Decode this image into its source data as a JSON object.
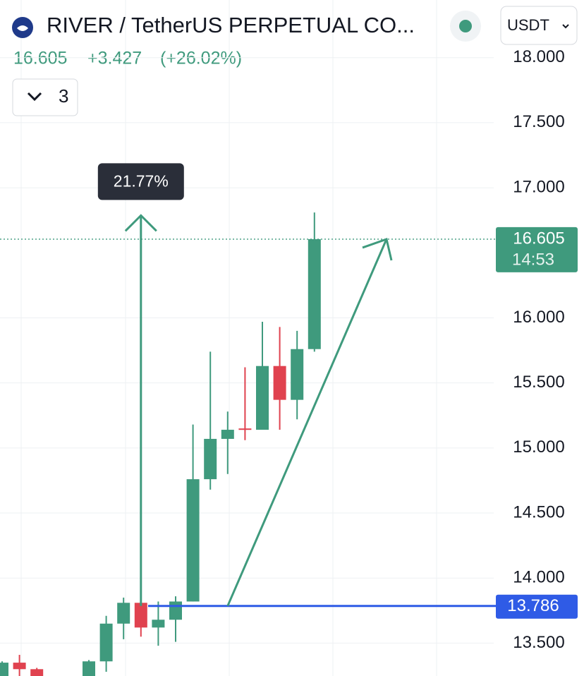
{
  "chart_data": {
    "type": "candlestick",
    "title": "RIVER / TetherUS PERPETUAL CO...",
    "last_price": 16.605,
    "change": "+3.427",
    "change_percent": "(+26.02%)",
    "interval_count": "3",
    "currency": "USDT",
    "countdown": "14:53",
    "up_color": "#3f9a7d",
    "down_color": "#e0424f",
    "categories": [
      null,
      null,
      null,
      null,
      null,
      null,
      null,
      null,
      null,
      null,
      null,
      null,
      null,
      null,
      null,
      null,
      null,
      null,
      null
    ],
    "open": [
      13.24,
      13.35,
      13.3,
      null,
      null,
      13.24,
      13.36,
      13.65,
      13.81,
      13.62,
      13.68,
      13.82,
      14.76,
      15.07,
      15.15,
      15.14,
      15.63,
      15.37,
      15.76
    ],
    "high": [
      13.36,
      13.41,
      13.31,
      null,
      null,
      13.37,
      13.71,
      13.85,
      13.94,
      13.82,
      13.86,
      15.18,
      15.74,
      15.28,
      15.62,
      15.97,
      15.93,
      15.9,
      16.81
    ],
    "low": [
      13.24,
      13.24,
      13.24,
      null,
      null,
      13.24,
      13.28,
      13.53,
      13.55,
      13.48,
      13.51,
      13.82,
      14.68,
      14.8,
      15.06,
      15.14,
      15.14,
      15.22,
      15.74
    ],
    "close": [
      13.35,
      13.3,
      13.24,
      null,
      null,
      13.36,
      13.65,
      13.81,
      13.62,
      13.68,
      13.82,
      14.76,
      15.07,
      15.14,
      15.14,
      15.63,
      15.37,
      15.76,
      16.605
    ],
    "ylim": [
      13.28,
      18.237
    ],
    "yticks": [
      {
        "value": 13.5,
        "label": "13.500"
      },
      {
        "value": 14,
        "label": "14.000"
      },
      {
        "value": 14.5,
        "label": "14.500"
      },
      {
        "value": 15,
        "label": "15.000"
      },
      {
        "value": 15.5,
        "label": "15.500"
      },
      {
        "value": 16,
        "label": "16.000"
      },
      {
        "value": 17,
        "label": "17.000"
      },
      {
        "value": 17.5,
        "label": "17.500"
      },
      {
        "value": 18,
        "label": "18.000"
      }
    ],
    "grid": true,
    "horizontal_line": {
      "value": 13.786,
      "color": "#2f5be6"
    },
    "measure": {
      "from": 13.786,
      "to": 16.787,
      "label": "21.77%"
    },
    "trend_line": {
      "from": 13.786,
      "to": 16.605
    }
  }
}
